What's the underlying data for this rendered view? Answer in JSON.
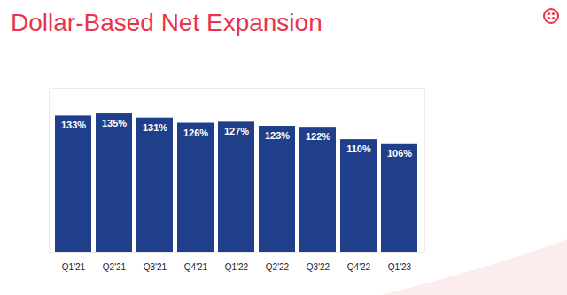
{
  "chart_data": {
    "type": "bar",
    "title": "Dollar-Based Net Expansion",
    "categories": [
      "Q1'21",
      "Q2'21",
      "Q3'21",
      "Q4'21",
      "Q1'22",
      "Q2'22",
      "Q3'22",
      "Q4'22",
      "Q1'23"
    ],
    "values": [
      133,
      135,
      131,
      126,
      127,
      123,
      122,
      110,
      106
    ],
    "value_labels": [
      "133%",
      "135%",
      "131%",
      "126%",
      "127%",
      "123%",
      "122%",
      "110%",
      "106%"
    ],
    "color": "#1f3f8a",
    "ylim": [
      0,
      160
    ],
    "yticks": [],
    "data_labels": true,
    "tick_labels": "x",
    "grid": false
  }
}
